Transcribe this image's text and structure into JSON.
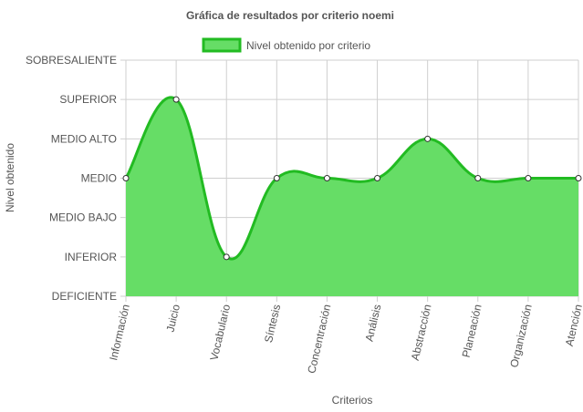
{
  "colors": {
    "fill": "#66dd66",
    "line": "#22bb22",
    "legend_fill": "#66dd66",
    "legend_border": "#22bb22",
    "point_fill": "#ffffff",
    "point_stroke": "#333333",
    "grid": "#cfcfcf",
    "text": "#555555",
    "title": "#555555"
  },
  "chart_data": {
    "type": "area",
    "title": "Gráfica de resultados por criterio noemi",
    "xlabel": "Criterios",
    "ylabel": "Nivel obtenido",
    "legend_position": "top",
    "grid": true,
    "y_levels": [
      "DEFICIENTE",
      "INFERIOR",
      "MEDIO BAJO",
      "MEDIO",
      "MEDIO ALTO",
      "SUPERIOR",
      "SOBRESALIENTE"
    ],
    "ylim": [
      0,
      6
    ],
    "categories": [
      "Información",
      "Juicio",
      "Vocabulario",
      "Síntesis",
      "Concentración",
      "Análisis",
      "Abstracción",
      "Planeación",
      "Organización",
      "Atención"
    ],
    "series": [
      {
        "name": "Nivel obtenido por criterio",
        "values": [
          3,
          5,
          1,
          3,
          3,
          3,
          4,
          3,
          3,
          3
        ]
      }
    ]
  }
}
